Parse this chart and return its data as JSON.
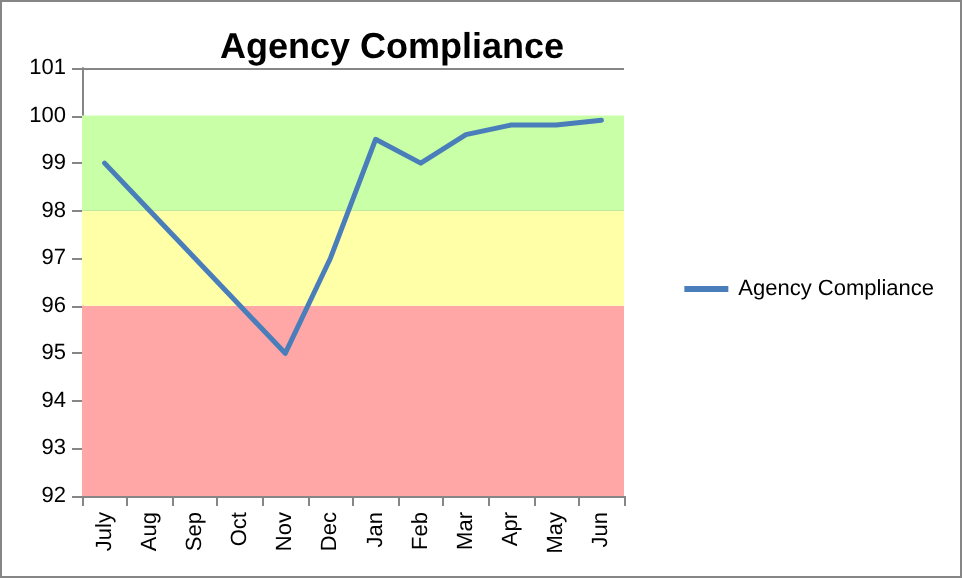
{
  "chart_data": {
    "type": "line",
    "title": "Agency Compliance",
    "categories": [
      "July",
      "Aug",
      "Sep",
      "Oct",
      "Nov",
      "Dec",
      "Jan",
      "Feb",
      "Mar",
      "Apr",
      "May",
      "Jun"
    ],
    "series": [
      {
        "name": "Agency Compliance",
        "color": "#4a7ebb",
        "values": [
          99,
          98,
          97,
          96,
          95,
          97,
          99.5,
          99,
          99.6,
          99.8,
          99.8,
          99.9
        ]
      }
    ],
    "ylim": [
      92,
      101
    ],
    "yticks": [
      92,
      93,
      94,
      95,
      96,
      97,
      98,
      99,
      100,
      101
    ],
    "grid": "y",
    "legend": "right",
    "marker": "none",
    "line_style": "solid",
    "bands": [
      {
        "axis": "y",
        "from": 92,
        "to": 96,
        "color": "#ffa7a7"
      },
      {
        "axis": "y",
        "from": 96,
        "to": 98,
        "color": "#ffffa7"
      },
      {
        "axis": "y",
        "from": 98,
        "to": 100,
        "color": "#c8ffa7"
      }
    ]
  }
}
